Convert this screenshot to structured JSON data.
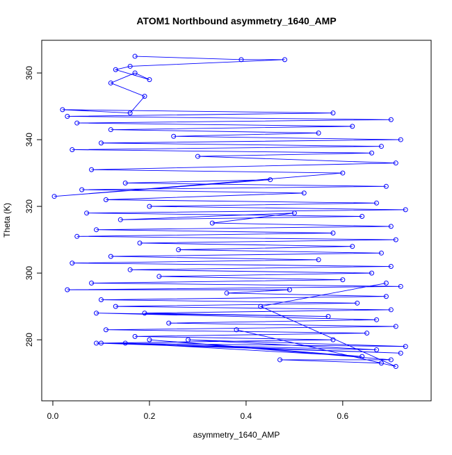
{
  "chart_data": {
    "type": "line",
    "title": "ATOM1 Northbound asymmetry_1640_AMP",
    "x_label": "asymmetry_1640_AMP",
    "y_label": "Theta (K)",
    "xlim": [
      -0.023,
      0.783
    ],
    "ylim": [
      261.7,
      369.8
    ],
    "xticks": [
      {
        "value": 0,
        "label": "0.0"
      },
      0.2,
      0.4,
      0.6
    ],
    "yticks": [
      280,
      300,
      320,
      340,
      360
    ],
    "grid": false,
    "markers": true,
    "series": [
      {
        "color": "#0000ff",
        "x": [
          0.17,
          0.39,
          0.48,
          0.16,
          0.13,
          0.2,
          0.17,
          0.12,
          0.19,
          0.16,
          0.02,
          0.58,
          0.03,
          0.7,
          0.05,
          0.62,
          0.12,
          0.55,
          0.25,
          0.72,
          0.1,
          0.68,
          0.04,
          0.66,
          0.3,
          0.71,
          0.08,
          0.6,
          0.003,
          0.45,
          0.15,
          0.69,
          0.06,
          0.52,
          0.11,
          0.67,
          0.2,
          0.73,
          0.07,
          0.64,
          0.14,
          0.5,
          0.33,
          0.7,
          0.09,
          0.58,
          0.05,
          0.71,
          0.18,
          0.62,
          0.26,
          0.68,
          0.12,
          0.55,
          0.04,
          0.7,
          0.16,
          0.66,
          0.22,
          0.6,
          0.08,
          0.72,
          0.03,
          0.49,
          0.36,
          0.69,
          0.1,
          0.63,
          0.13,
          0.7,
          0.19,
          0.57,
          0.09,
          0.67,
          0.24,
          0.71,
          0.11,
          0.65,
          0.17,
          0.58,
          0.1,
          0.73,
          0.28,
          0.67,
          0.09,
          0.72,
          0.15,
          0.64,
          0.2,
          0.7,
          0.47,
          0.68,
          0.38,
          0.71,
          0.43,
          0.69
        ],
        "values": [
          365,
          364,
          364,
          362,
          361,
          358,
          360,
          357,
          353,
          348,
          349,
          348,
          347,
          346,
          345,
          344,
          343,
          342,
          341,
          340,
          339,
          338,
          337,
          336,
          335,
          333,
          331,
          330,
          323,
          328,
          327,
          326,
          325,
          324,
          322,
          321,
          320,
          319,
          318,
          317,
          316,
          318,
          315,
          314,
          313,
          312,
          311,
          310,
          309,
          308,
          307,
          306,
          305,
          304,
          303,
          302,
          301,
          300,
          299,
          298,
          297,
          296,
          295,
          295,
          294,
          293,
          292,
          291,
          290,
          289,
          288,
          287,
          288,
          286,
          285,
          284,
          283,
          282,
          281,
          280,
          279,
          278,
          280,
          277,
          279,
          276,
          279,
          275,
          280,
          274,
          274,
          273,
          283,
          272,
          290,
          297
        ]
      }
    ]
  }
}
